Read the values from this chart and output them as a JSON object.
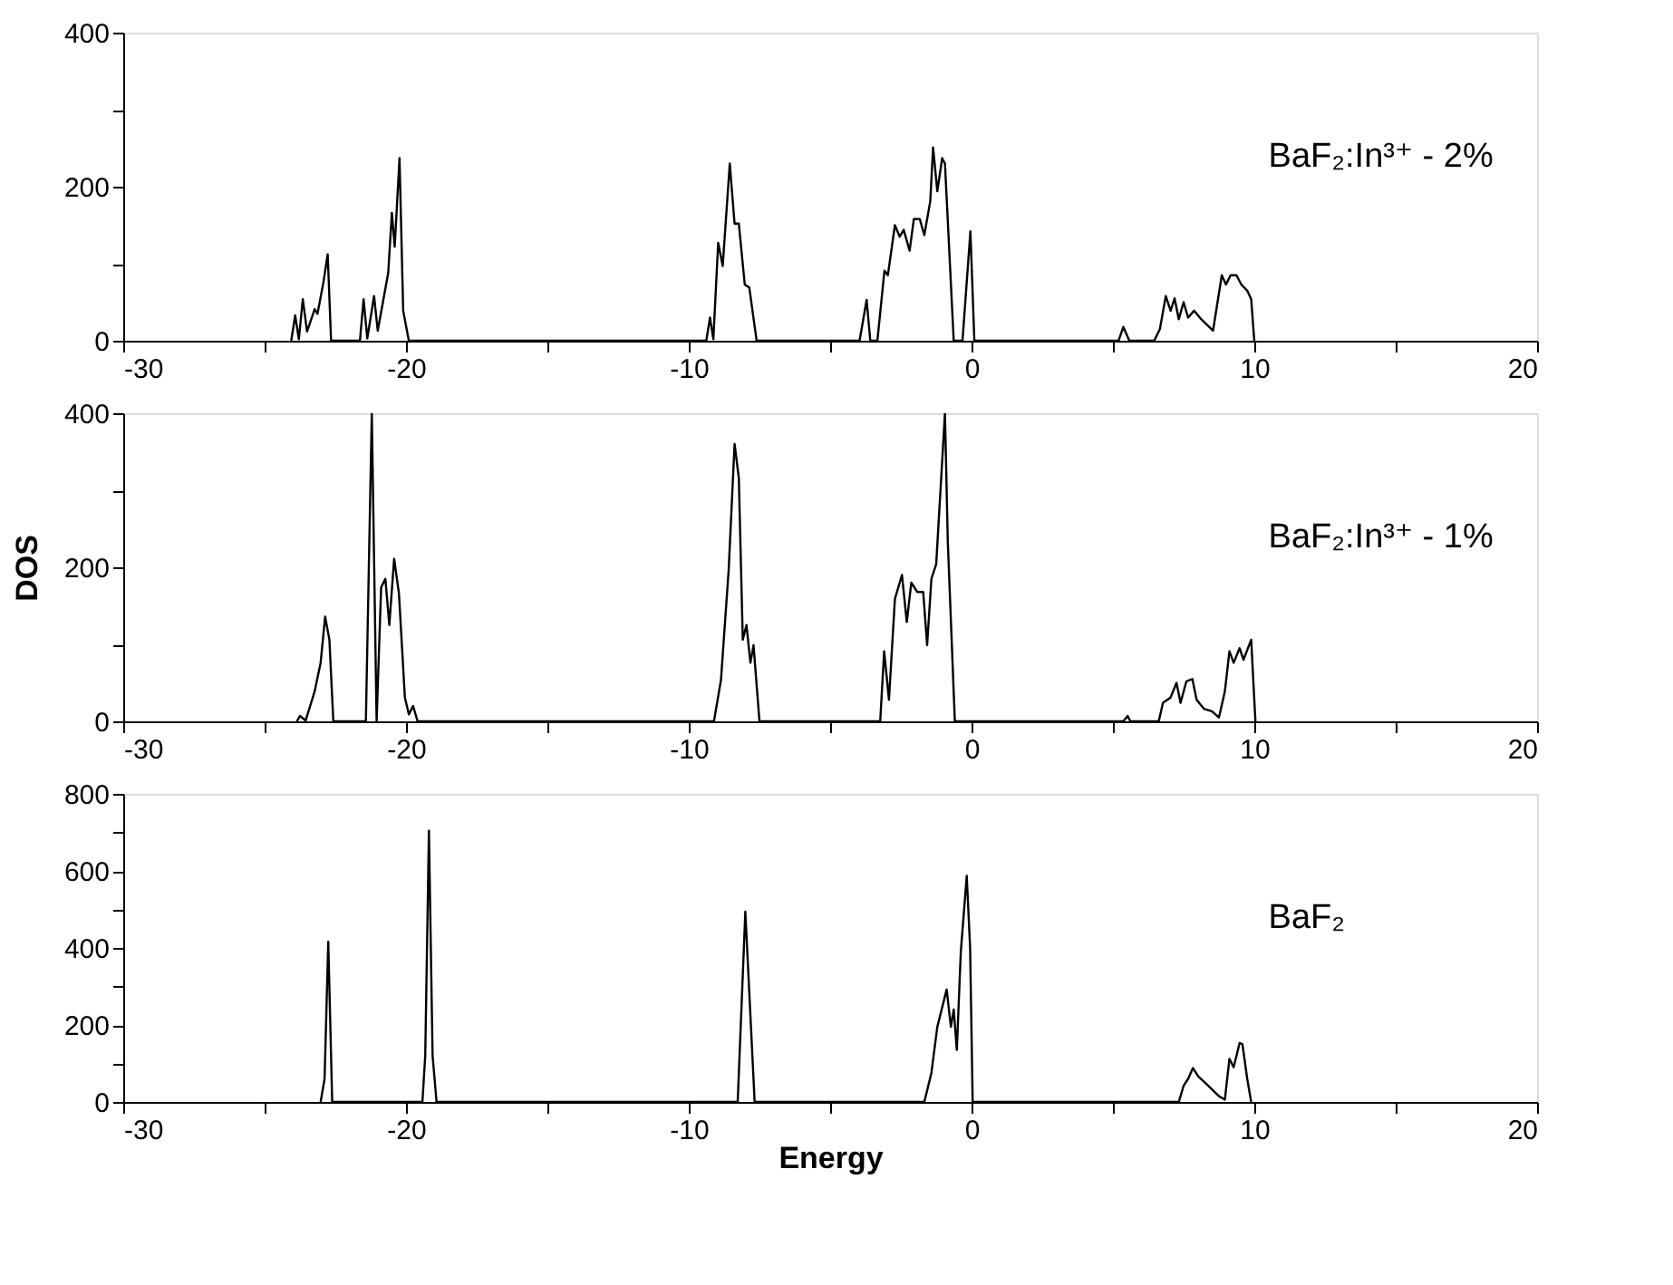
{
  "chart_data": [
    {
      "type": "line",
      "xlim": [
        -30,
        20
      ],
      "xticks": [
        -30,
        {
          "value": -25,
          "label": null
        },
        -20,
        {
          "value": -15,
          "label": null
        },
        -10,
        {
          "value": -5,
          "label": null
        },
        0,
        {
          "value": 5,
          "label": null
        },
        10,
        {
          "value": 15,
          "label": null
        },
        20
      ],
      "ylim": [
        0,
        400
      ],
      "yticks": [
        0,
        {
          "value": 100,
          "label": null
        },
        200,
        {
          "value": 300,
          "label": null
        },
        400
      ],
      "series": [
        {
          "name": "BaF₂:In³⁺ - 2%",
          "color": "#000000",
          "x": [
            -24.06,
            -23.92,
            -23.79,
            -23.65,
            -23.5,
            -23.23,
            -23.13,
            -22.92,
            -22.77,
            -22.65,
            -21.63,
            -21.5,
            -21.37,
            -21.13,
            -21.0,
            -20.63,
            -20.5,
            -20.4,
            -20.23,
            -20.1,
            -19.9,
            -9.38,
            -9.25,
            -9.13,
            -8.96,
            -8.8,
            -8.55,
            -8.38,
            -8.23,
            -8.02,
            -7.86,
            -7.6,
            -3.96,
            -3.71,
            -3.58,
            -3.33,
            -3.08,
            -2.96,
            -2.71,
            -2.54,
            -2.4,
            -2.19,
            -2.04,
            -1.83,
            -1.67,
            -1.46,
            -1.36,
            -1.21,
            -1.04,
            -0.94,
            -0.63,
            -0.32,
            -0.04,
            0.1,
            5.2,
            5.37,
            5.58,
            6.46,
            6.66,
            6.87,
            7.04,
            7.18,
            7.33,
            7.5,
            7.66,
            7.87,
            8.12,
            8.54,
            8.85,
            9.0,
            9.16,
            9.37,
            9.54,
            9.75,
            9.89,
            10.0
          ],
          "values": [
            0,
            33,
            2,
            54,
            12,
            41,
            35,
            76,
            112,
            0,
            0,
            54,
            3,
            58,
            13,
            88,
            166,
            122,
            237,
            39,
            0,
            0,
            30,
            2,
            127,
            97,
            230,
            152,
            152,
            73,
            69,
            0,
            0,
            53,
            0,
            0,
            91,
            85,
            150,
            135,
            144,
            117,
            158,
            158,
            137,
            181,
            251,
            194,
            237,
            230,
            0,
            0,
            142,
            0,
            0,
            18,
            0,
            0,
            15,
            58,
            39,
            55,
            28,
            50,
            30,
            39,
            28,
            13,
            85,
            73,
            85,
            85,
            73,
            65,
            54,
            0
          ]
        }
      ]
    },
    {
      "type": "line",
      "ylabel": "DOS",
      "xlim": [
        -30,
        20
      ],
      "xticks": [
        -30,
        {
          "value": -25,
          "label": null
        },
        -20,
        {
          "value": -15,
          "label": null
        },
        -10,
        {
          "value": -5,
          "label": null
        },
        0,
        {
          "value": 5,
          "label": null
        },
        10,
        {
          "value": 15,
          "label": null
        },
        20
      ],
      "ylim": [
        0,
        400
      ],
      "yticks": [
        0,
        {
          "value": 100,
          "label": null
        },
        200,
        {
          "value": 300,
          "label": null
        },
        400
      ],
      "series": [
        {
          "name": "BaF₂:In³⁺ - 1%",
          "color": "#000000",
          "x": [
            -23.86,
            -23.75,
            -23.55,
            -23.23,
            -23.02,
            -22.86,
            -22.71,
            -22.57,
            -21.42,
            -21.21,
            -21.04,
            -20.88,
            -20.73,
            -20.59,
            -20.42,
            -20.25,
            -20.04,
            -19.9,
            -19.75,
            -19.59,
            -9.11,
            -8.86,
            -8.59,
            -8.38,
            -8.23,
            -8.09,
            -7.96,
            -7.82,
            -7.71,
            -7.5,
            -3.23,
            -3.09,
            -2.92,
            -2.71,
            -2.46,
            -2.29,
            -2.13,
            -1.92,
            -1.71,
            -1.57,
            -1.42,
            -1.25,
            -0.94,
            -0.84,
            -0.59,
            5.37,
            5.52,
            5.62,
            6.62,
            6.77,
            7.04,
            7.25,
            7.39,
            7.6,
            7.81,
            7.96,
            8.23,
            8.5,
            8.75,
            8.96,
            9.12,
            9.27,
            9.48,
            9.62,
            9.89,
            10.04
          ],
          "values": [
            0,
            7,
            1,
            39,
            76,
            136,
            106,
            0,
            0,
            400,
            0,
            174,
            185,
            125,
            211,
            166,
            31,
            9,
            20,
            0,
            0,
            54,
            196,
            360,
            316,
            106,
            125,
            76,
            99,
            0,
            0,
            91,
            28,
            159,
            190,
            129,
            180,
            168,
            168,
            99,
            185,
            204,
            400,
            234,
            0,
            0,
            7,
            0,
            0,
            24,
            31,
            50,
            24,
            52,
            55,
            28,
            16,
            13,
            5,
            39,
            91,
            76,
            95,
            80,
            106,
            0
          ]
        }
      ]
    },
    {
      "type": "line",
      "xlabel": "Energy",
      "xlim": [
        -30,
        20
      ],
      "xticks": [
        -30,
        {
          "value": -25,
          "label": null
        },
        -20,
        {
          "value": -15,
          "label": null
        },
        -10,
        {
          "value": -5,
          "label": null
        },
        0,
        {
          "value": 5,
          "label": null
        },
        10,
        {
          "value": 15,
          "label": null
        },
        20
      ],
      "ylim": [
        0,
        800
      ],
      "yticks": [
        0,
        {
          "value": 100,
          "label": null
        },
        200,
        {
          "value": 300,
          "label": null
        },
        400,
        {
          "value": 500,
          "label": null
        },
        600,
        {
          "value": 700,
          "label": null
        },
        800
      ],
      "series": [
        {
          "name": "BaF₂",
          "color": "#000000",
          "x": [
            -23.02,
            -22.88,
            -22.75,
            -22.61,
            -19.42,
            -19.32,
            -19.19,
            -19.06,
            -18.92,
            -8.27,
            -8.0,
            -7.67,
            -1.67,
            -1.42,
            -1.21,
            -0.88,
            -0.73,
            -0.63,
            -0.52,
            -0.38,
            -0.17,
            -0.05,
            0.04,
            7.33,
            7.5,
            7.66,
            7.83,
            8.02,
            8.33,
            8.75,
            8.96,
            9.12,
            9.27,
            9.48,
            9.58,
            9.75,
            9.89
          ],
          "values": [
            0,
            60,
            416,
            0,
            0,
            120,
            704,
            120,
            0,
            0,
            494,
            0,
            0,
            75,
            195,
            292,
            195,
            240,
            135,
            389,
            587,
            400,
            0,
            0,
            42,
            60,
            88,
            66,
            45,
            15,
            6,
            112,
            90,
            153,
            150,
            60,
            0
          ]
        }
      ]
    }
  ]
}
